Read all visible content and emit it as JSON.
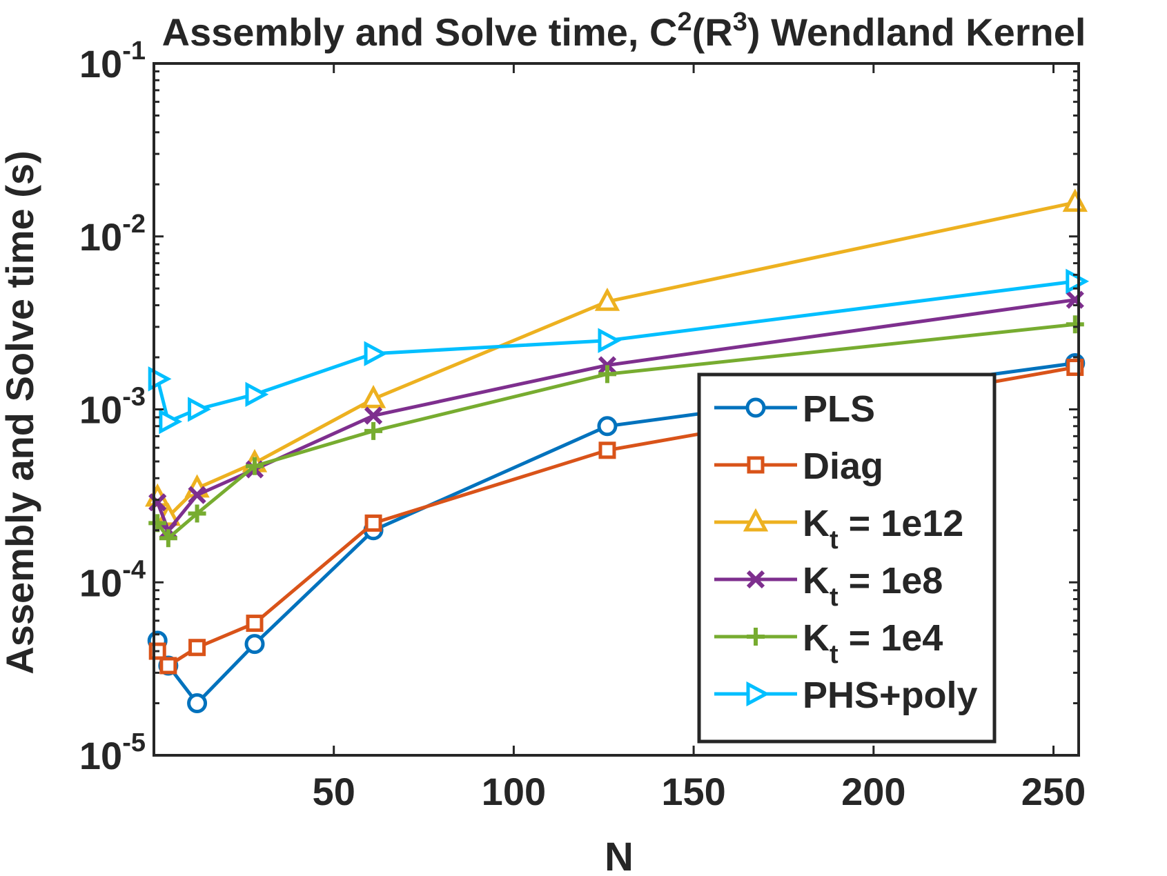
{
  "chart_data": {
    "type": "line",
    "title_parts": {
      "main": "Assembly and Solve time, C",
      "sup1": "2",
      "mid": "(R",
      "sup2": "3",
      "end": ") Wendland Kernel"
    },
    "xlabel": "N",
    "ylabel": "Assembly and Solve time (s)",
    "xlim": [
      0,
      257
    ],
    "ylim": [
      1e-05,
      0.1
    ],
    "yscale": "log",
    "x_ticks": [
      50,
      100,
      150,
      200,
      250
    ],
    "x_tick_labels": [
      "50",
      "100",
      "150",
      "200",
      "250"
    ],
    "y_ticks": [
      {
        "value": 1e-05,
        "base": "10",
        "exp": "-5"
      },
      {
        "value": 0.0001,
        "base": "10",
        "exp": "-4"
      },
      {
        "value": 0.001,
        "base": "10",
        "exp": "-3"
      },
      {
        "value": 0.01,
        "base": "10",
        "exp": "-2"
      },
      {
        "value": 0.1,
        "base": "10",
        "exp": "-1"
      }
    ],
    "grid": false,
    "legend_position": "lower-right",
    "x": [
      1,
      4,
      12,
      28,
      61,
      126,
      256
    ],
    "series": [
      {
        "name": "PLS",
        "label_main": "PLS",
        "label_sub": "",
        "label_rest": "",
        "color": "#0072BD",
        "marker": "circle",
        "values": [
          4.6e-05,
          3.3e-05,
          2e-05,
          4.4e-05,
          0.0002,
          0.0008,
          0.00185
        ]
      },
      {
        "name": "Diag",
        "label_main": "Diag",
        "label_sub": "",
        "label_rest": "",
        "color": "#D95319",
        "marker": "square",
        "values": [
          4e-05,
          3.3e-05,
          4.2e-05,
          5.8e-05,
          0.00022,
          0.00058,
          0.00175
        ]
      },
      {
        "name": "Kt = 1e12",
        "label_main": "K",
        "label_sub": "t",
        "label_rest": " = 1e12",
        "color": "#EDB120",
        "marker": "triangle-up",
        "values": [
          0.00031,
          0.00024,
          0.00035,
          0.00049,
          0.00115,
          0.0042,
          0.0157
        ]
      },
      {
        "name": "Kt = 1e8",
        "label_main": "K",
        "label_sub": "t",
        "label_rest": " = 1e8",
        "color": "#7E2F8E",
        "marker": "x",
        "values": [
          0.00029,
          0.0002,
          0.00032,
          0.00045,
          0.00092,
          0.0018,
          0.0043
        ]
      },
      {
        "name": "Kt = 1e4",
        "label_main": "K",
        "label_sub": "t",
        "label_rest": " = 1e4",
        "color": "#77AC30",
        "marker": "plus",
        "values": [
          0.00022,
          0.00018,
          0.00025,
          0.00047,
          0.00075,
          0.0016,
          0.0031
        ]
      },
      {
        "name": "PHS+poly",
        "label_main": "PHS+poly",
        "label_sub": "",
        "label_rest": "",
        "color": "#00BFFF",
        "marker": "triangle-right",
        "values": [
          0.0015,
          0.00085,
          0.001,
          0.00122,
          0.0021,
          0.0025,
          0.0055
        ]
      }
    ]
  }
}
